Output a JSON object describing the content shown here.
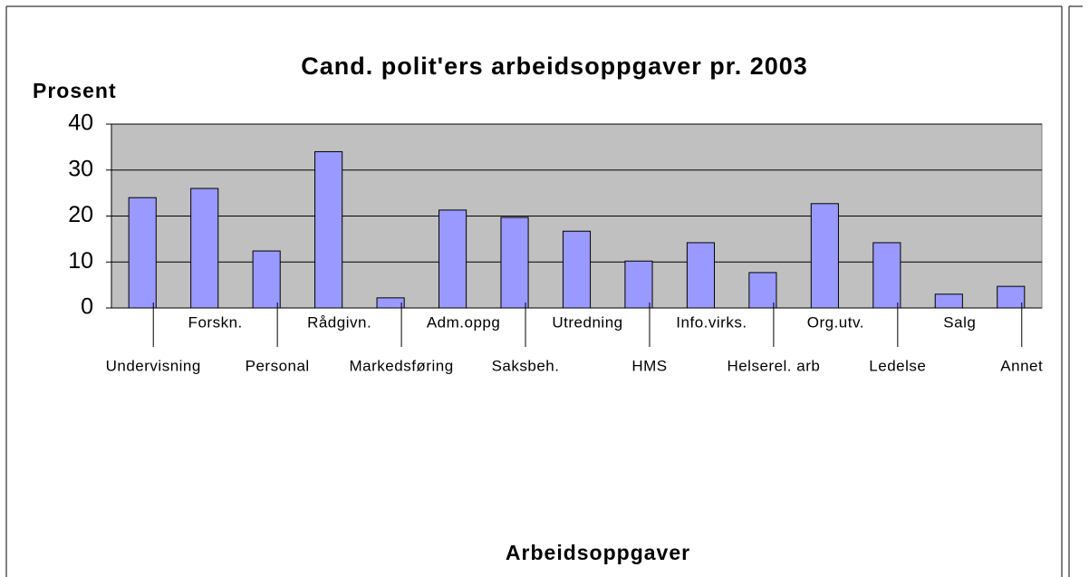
{
  "chart_data": {
    "type": "bar",
    "title": "Cand. polit'ers arbeidsoppgaver pr. 2003",
    "y_label": "Prosent",
    "x_label": "Arbeidsoppgaver",
    "categories": [
      "Undervisning",
      "Forskn.",
      "Personal",
      "Rådgivn.",
      "Markedsføring",
      "Adm.oppg",
      "Saksbeh.",
      "Utredning",
      "HMS",
      "Info.virks.",
      "Helserel. arb",
      "Org.utv.",
      "Ledelse",
      "Salg",
      "Annet"
    ],
    "values": [
      24,
      26,
      12.4,
      34,
      2.2,
      21.3,
      19.7,
      16.7,
      10.2,
      14.2,
      7.7,
      22.7,
      14.2,
      3,
      4.7
    ],
    "color": "#9999ff",
    "plot_background": "#c0c0c0",
    "ylim": [
      0,
      40
    ],
    "yticks": [
      0,
      10,
      20,
      30,
      40
    ],
    "grid": true
  }
}
